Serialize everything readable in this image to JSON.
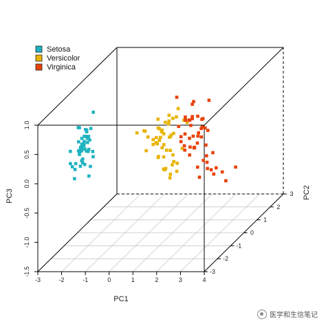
{
  "chart_data": {
    "type": "scatter",
    "title": "",
    "xlabel": "PC1",
    "ylabel": "PC2",
    "zlabel": "PC3",
    "xlim": [
      -3,
      4
    ],
    "ylim": [
      -3,
      3
    ],
    "zlim": [
      -1.5,
      1.0
    ],
    "x_ticks": [
      "-3",
      "-2",
      "-1",
      "0",
      "1",
      "2",
      "3",
      "4"
    ],
    "y_ticks": [
      "-3",
      "-2",
      "-1",
      "0",
      "1",
      "2",
      "3"
    ],
    "z_ticks": [
      "-1.5",
      "-1.0",
      "-0.5",
      "0.0",
      "0.5",
      "1.0"
    ],
    "grid": "bottom plane",
    "legend_position": "top-left",
    "series": [
      {
        "name": "Setosa",
        "color": "#1fb3c0",
        "points": [
          [
            -2.68,
            -0.32,
            0.03
          ],
          [
            -2.71,
            0.18,
            0.21
          ],
          [
            -2.89,
            0.14,
            -0.02
          ],
          [
            -2.75,
            0.32,
            -0.03
          ],
          [
            -2.73,
            -0.33,
            -0.09
          ],
          [
            -2.28,
            -0.74,
            -0.17
          ],
          [
            -2.82,
            0.09,
            -0.26
          ],
          [
            -2.63,
            -0.16,
            0.02
          ],
          [
            -2.89,
            0.58,
            -0.02
          ],
          [
            -2.67,
            0.11,
            0.2
          ],
          [
            -2.51,
            -0.65,
            0.08
          ],
          [
            -2.61,
            -0.02,
            -0.1
          ],
          [
            -2.79,
            0.24,
            0.21
          ],
          [
            -3.23,
            0.51,
            -0.06
          ],
          [
            -2.64,
            -1.18,
            0.15
          ],
          [
            -2.38,
            -1.34,
            -0.28
          ],
          [
            -2.62,
            -0.81,
            -0.14
          ],
          [
            -2.65,
            -0.31,
            -0.03
          ],
          [
            -2.2,
            -0.87,
            0.12
          ],
          [
            -2.59,
            -0.51,
            -0.25
          ],
          [
            -2.31,
            -0.39,
            0.23
          ],
          [
            -2.54,
            -0.43,
            -0.21
          ],
          [
            -3.22,
            -0.13,
            -0.29
          ],
          [
            -2.3,
            -0.1,
            -0.09
          ],
          [
            -2.36,
            0.04,
            -0.21
          ],
          [
            -2.51,
            0.14,
            0.25
          ],
          [
            -2.47,
            -0.14,
            -0.08
          ],
          [
            -2.56,
            -0.37,
            0.07
          ],
          [
            -2.64,
            -0.31,
            0.18
          ],
          [
            -2.63,
            0.2,
            -0.12
          ],
          [
            -2.59,
            0.2,
            0.04
          ],
          [
            -2.41,
            -0.41,
            0.23
          ],
          [
            -2.65,
            -0.81,
            -0.24
          ],
          [
            -2.6,
            -1.1,
            -0.13
          ],
          [
            -2.67,
            0.11,
            0.21
          ],
          [
            -2.87,
            -0.08,
            0.31
          ],
          [
            -2.63,
            -0.6,
            0.43
          ],
          [
            -2.8,
            -0.27,
            -0.04
          ],
          [
            -2.98,
            0.49,
            0.04
          ],
          [
            -2.59,
            -0.23,
            0.09
          ],
          [
            -2.77,
            -0.26,
            -0.09
          ],
          [
            -2.85,
            0.94,
            0.35
          ],
          [
            -3.0,
            0.34,
            -0.14
          ],
          [
            -2.41,
            -0.19,
            -0.49
          ],
          [
            -2.21,
            -0.44,
            -0.27
          ],
          [
            -2.72,
            0.25,
            0.09
          ],
          [
            -2.54,
            -0.5,
            -0.16
          ],
          [
            -2.84,
            0.23,
            0.01
          ],
          [
            -2.54,
            -0.59,
            0.02
          ],
          [
            -2.7,
            -0.11,
            0.04
          ]
        ]
      },
      {
        "name": "Versicolor",
        "color": "#e8b400",
        "points": [
          [
            1.28,
            -0.69,
            -0.41
          ],
          [
            0.93,
            -0.32,
            -0.02
          ],
          [
            1.46,
            -0.5,
            -0.34
          ],
          [
            0.18,
            0.83,
            -0.18
          ],
          [
            1.09,
            -0.07,
            -0.27
          ],
          [
            0.64,
            0.42,
            0.04
          ],
          [
            1.1,
            -0.28,
            0.23
          ],
          [
            -0.75,
            1.0,
            0.02
          ],
          [
            1.04,
            -0.23,
            -0.45
          ],
          [
            -0.01,
            0.72,
            0.28
          ],
          [
            -0.51,
            1.26,
            -0.27
          ],
          [
            0.51,
            0.1,
            0.23
          ],
          [
            0.26,
            0.55,
            -0.17
          ],
          [
            0.98,
            0.12,
            0.17
          ],
          [
            -0.17,
            0.25,
            0.08
          ],
          [
            0.93,
            -0.47,
            -0.32
          ],
          [
            0.66,
            0.35,
            0.33
          ],
          [
            0.23,
            0.33,
            -0.27
          ],
          [
            0.94,
            0.54,
            0.5
          ],
          [
            0.04,
            0.58,
            -0.11
          ],
          [
            1.12,
            0.08,
            0.46
          ],
          [
            0.36,
            0.07,
            -0.23
          ],
          [
            1.3,
            0.33,
            0.35
          ],
          [
            0.92,
            0.18,
            -0.21
          ],
          [
            0.71,
            -0.15,
            -0.38
          ],
          [
            0.9,
            -0.33,
            -0.33
          ],
          [
            1.33,
            -0.24,
            -0.26
          ],
          [
            1.56,
            -0.27,
            0.0
          ],
          [
            0.81,
            0.16,
            0.1
          ],
          [
            -0.31,
            0.37,
            -0.18
          ],
          [
            -0.07,
            0.7,
            -0.03
          ],
          [
            -0.19,
            0.68,
            -0.06
          ],
          [
            0.14,
            0.31,
            -0.03
          ],
          [
            1.38,
            0.42,
            0.29
          ],
          [
            0.59,
            0.48,
            0.4
          ],
          [
            0.81,
            -0.2,
            0.43
          ],
          [
            1.22,
            -0.41,
            -0.25
          ],
          [
            0.81,
            0.37,
            0.37
          ],
          [
            0.25,
            0.27,
            0.23
          ],
          [
            0.16,
            0.68,
            0.1
          ],
          [
            0.46,
            0.67,
            0.21
          ],
          [
            0.89,
            0.03,
            -0.1
          ],
          [
            0.23,
            0.4,
            -0.01
          ],
          [
            -0.71,
            1.01,
            0.01
          ],
          [
            0.36,
            0.5,
            0.08
          ],
          [
            0.33,
            0.21,
            0.23
          ],
          [
            0.38,
            0.29,
            0.16
          ],
          [
            0.64,
            -0.02,
            -0.2
          ],
          [
            -0.91,
            0.75,
            0.04
          ],
          [
            0.3,
            0.35,
            0.05
          ]
        ]
      },
      {
        "name": "Virginica",
        "color": "#e8420b",
        "points": [
          [
            2.53,
            0.01,
            0.76
          ],
          [
            1.41,
            0.57,
            0.3
          ],
          [
            2.62,
            -0.34,
            -0.11
          ],
          [
            1.97,
            0.18,
            0.11
          ],
          [
            2.35,
            0.04,
            0.28
          ],
          [
            3.4,
            -0.55,
            -0.34
          ],
          [
            0.52,
            1.19,
            0.55
          ],
          [
            2.93,
            -0.35,
            -0.42
          ],
          [
            2.32,
            0.24,
            -0.35
          ],
          [
            2.92,
            -0.78,
            0.42
          ],
          [
            1.66,
            -0.24,
            0.24
          ],
          [
            1.8,
            0.22,
            -0.09
          ],
          [
            2.17,
            -0.22,
            0.08
          ],
          [
            1.34,
            0.78,
            0.16
          ],
          [
            1.59,
            0.54,
            0.62
          ],
          [
            1.9,
            -0.12,
            0.51
          ],
          [
            1.95,
            -0.04,
            -0.04
          ],
          [
            3.49,
            -1.18,
            -0.13
          ],
          [
            3.8,
            -0.26,
            -0.32
          ],
          [
            1.3,
            0.76,
            -0.34
          ],
          [
            2.43,
            -0.38,
            0.22
          ],
          [
            1.2,
            0.61,
            0.34
          ],
          [
            3.5,
            -0.46,
            -0.51
          ],
          [
            1.39,
            0.2,
            -0.06
          ],
          [
            2.28,
            -0.33,
            0.28
          ],
          [
            2.61,
            -0.56,
            -0.14
          ],
          [
            1.26,
            0.18,
            0.1
          ],
          [
            1.29,
            0.12,
            0.03
          ],
          [
            2.12,
            0.21,
            0.39
          ],
          [
            2.39,
            -0.46,
            -0.45
          ],
          [
            2.84,
            -0.38,
            -0.34
          ],
          [
            3.23,
            -1.37,
            -0.1
          ],
          [
            2.16,
            0.22,
            0.4
          ],
          [
            1.44,
            0.14,
            -0.12
          ],
          [
            1.78,
            0.5,
            -0.49
          ],
          [
            3.08,
            -0.69,
            0.02
          ],
          [
            2.14,
            -0.14,
            0.52
          ],
          [
            1.9,
            -0.05,
            0.16
          ],
          [
            1.17,
            0.16,
            0.28
          ],
          [
            2.11,
            -0.37,
            0.03
          ],
          [
            2.31,
            -0.18,
            0.32
          ],
          [
            1.92,
            -0.41,
            0.51
          ],
          [
            1.41,
            0.57,
            0.3
          ],
          [
            2.56,
            -0.28,
            0.06
          ],
          [
            2.42,
            -0.3,
            0.37
          ],
          [
            1.94,
            -0.19,
            0.49
          ],
          [
            1.53,
            0.38,
            -0.12
          ],
          [
            1.76,
            -0.08,
            0.13
          ],
          [
            1.9,
            -0.12,
            0.72
          ],
          [
            1.39,
            0.28,
            0.36
          ]
        ]
      }
    ]
  },
  "watermark": {
    "text": "医学和生信笔记",
    "icon": "wechat-icon"
  }
}
